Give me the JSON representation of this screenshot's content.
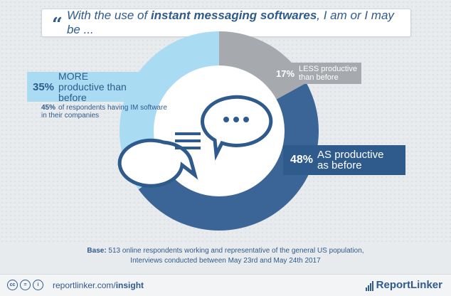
{
  "title": {
    "prefix": "With the use of ",
    "emphasis": "instant messaging softwares",
    "suffix": ", I am or I may be ..."
  },
  "chart_data": {
    "type": "pie",
    "series": [
      {
        "label_pct": "35%",
        "label": "MORE productive than before",
        "value": 35,
        "color": "#a9dcf2"
      },
      {
        "label_pct": "17%",
        "label": "LESS productive than before",
        "value": 17,
        "color": "#a6a9ad"
      },
      {
        "label_pct": "48%",
        "label": "AS productive as before",
        "value": 48,
        "color": "#3b6596"
      }
    ],
    "sub_note": {
      "pct": "45%",
      "text": "of respondents having IM software in their companies"
    }
  },
  "base": {
    "bold": "Base:",
    "line1": " 513 online respondents working and representative of the general US population,",
    "line2": "Interviews conducted between May 23rd and May 24th 2017"
  },
  "footer": {
    "url_plain": "reportlinker.com/",
    "url_bold": "insight",
    "brand": "ReportLinker",
    "cc_icons": [
      "cc",
      "=",
      "i"
    ]
  },
  "colors": {
    "accent": "#2e5b8c",
    "light": "#a9dcf2",
    "grey": "#a6a9ad",
    "dark": "#3b6596"
  }
}
